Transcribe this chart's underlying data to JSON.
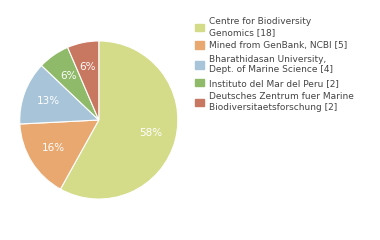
{
  "labels": [
    "Centre for Biodiversity\nGenomics [18]",
    "Mined from GenBank, NCBI [5]",
    "Bharathidasan University,\nDept. of Marine Science [4]",
    "Instituto del Mar del Peru [2]",
    "Deutsches Zentrum fuer Marine\nBiodiversitaetsforschung [2]"
  ],
  "values": [
    18,
    5,
    4,
    2,
    2
  ],
  "colors": [
    "#d4dc8a",
    "#e8a870",
    "#a8c4d8",
    "#8fba6a",
    "#c87860"
  ],
  "background_color": "#ffffff",
  "text_color": "#444444",
  "pct_fontsize": 7.5,
  "legend_fontsize": 6.5
}
